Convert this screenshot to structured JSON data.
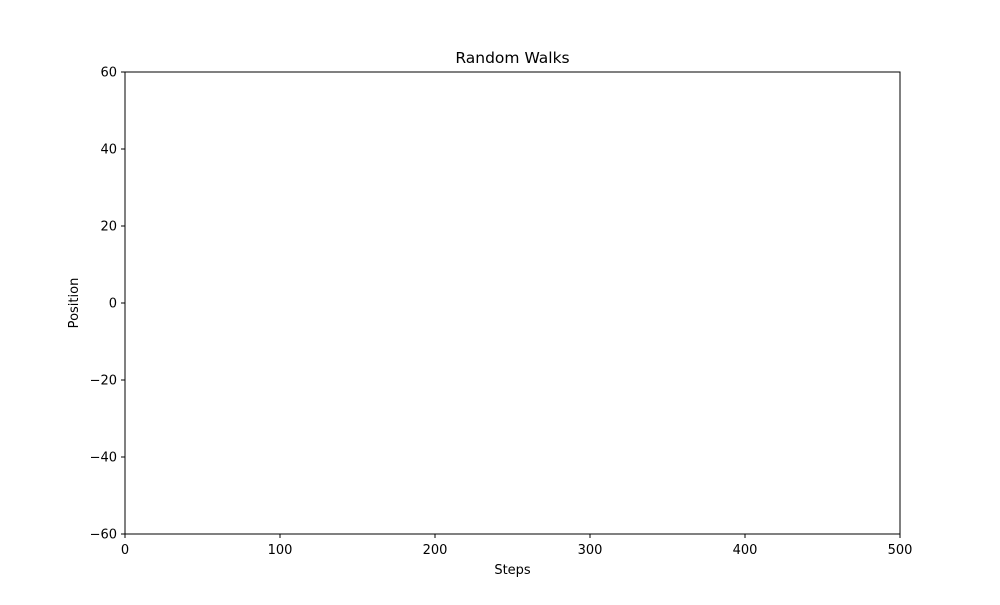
{
  "chart_data": {
    "type": "line",
    "title": "Random Walks",
    "xlabel": "Steps",
    "ylabel": "Position",
    "xlim": [
      0,
      500
    ],
    "ylim": [
      -60,
      60
    ],
    "x_ticks": [
      0,
      100,
      200,
      300,
      400,
      500
    ],
    "y_ticks": [
      60,
      40,
      20,
      0,
      -20,
      -40,
      -60
    ],
    "x_tick_labels": [
      "0",
      "100",
      "200",
      "300",
      "400",
      "500"
    ],
    "y_tick_labels": [
      "60",
      "40",
      "20",
      "0",
      "−20",
      "−40",
      "−60"
    ],
    "grid": false,
    "series": []
  }
}
